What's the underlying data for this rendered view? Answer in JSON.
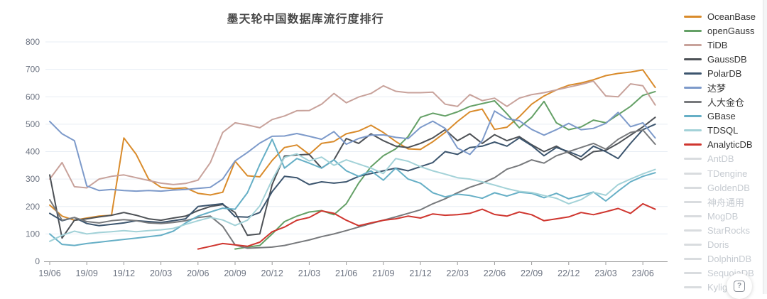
{
  "title": "墨天轮中国数据库流行度排行",
  "help_button": {
    "glyph": "?"
  },
  "chart_data": {
    "type": "line",
    "title": "墨天轮中国数据库流行度排行",
    "x": [
      "19/06",
      "19/07",
      "19/08",
      "19/09",
      "19/10",
      "19/11",
      "19/12",
      "20/01",
      "20/02",
      "20/03",
      "20/04",
      "20/05",
      "20/06",
      "20/07",
      "20/08",
      "20/09",
      "20/10",
      "20/11",
      "20/12",
      "21/01",
      "21/02",
      "21/03",
      "21/04",
      "21/05",
      "21/06",
      "21/07",
      "21/08",
      "21/09",
      "21/10",
      "21/11",
      "21/12",
      "22/01",
      "22/02",
      "22/03",
      "22/04",
      "22/05",
      "22/06",
      "22/07",
      "22/08",
      "22/09",
      "22/10",
      "22/11",
      "22/12",
      "23/01",
      "23/02",
      "23/03",
      "23/04",
      "23/05",
      "23/06",
      "23/07"
    ],
    "x_tick_labels": [
      "19/06",
      "19/09",
      "19/12",
      "20/03",
      "20/06",
      "20/09",
      "20/12",
      "21/03",
      "21/06",
      "21/09",
      "21/12",
      "22/03",
      "22/06",
      "22/09",
      "22/12",
      "23/03",
      "23/06"
    ],
    "tick_every": 3,
    "ylim": [
      0,
      800
    ],
    "y_ticks": [
      0,
      100,
      200,
      300,
      400,
      500,
      600,
      700,
      800
    ],
    "grid": true,
    "legend_position": "right",
    "colors": {
      "grid": "#e7edf4",
      "axis": "#999999",
      "tick_label": "#6b7280",
      "disabled_line": "#d9dcdf",
      "disabled_text": "#c6cbd1"
    },
    "series": [
      {
        "name": "OceanBase",
        "color": "#d98b2b",
        "enabled": true,
        "values": [
          205,
          165,
          150,
          158,
          165,
          168,
          450,
          390,
          300,
          270,
          265,
          268,
          248,
          242,
          252,
          365,
          312,
          308,
          368,
          415,
          424,
          390,
          430,
          437,
          465,
          475,
          496,
          470,
          437,
          410,
          408,
          436,
          470,
          510,
          545,
          555,
          481,
          489,
          527,
          573,
          603,
          625,
          642,
          650,
          662,
          677,
          685,
          690,
          698,
          634
        ]
      },
      {
        "name": "openGauss",
        "color": "#64a066",
        "enabled": true,
        "values": [
          null,
          null,
          null,
          null,
          null,
          null,
          null,
          null,
          null,
          null,
          null,
          null,
          null,
          null,
          null,
          45,
          52,
          58,
          100,
          145,
          165,
          180,
          185,
          170,
          210,
          285,
          345,
          385,
          410,
          455,
          525,
          540,
          530,
          545,
          565,
          575,
          585,
          538,
          487,
          525,
          583,
          505,
          480,
          490,
          515,
          505,
          535,
          565,
          605,
          619
        ]
      },
      {
        "name": "TiDB",
        "color": "#c8a29b",
        "enabled": true,
        "values": [
          300,
          360,
          272,
          268,
          300,
          310,
          315,
          305,
          295,
          285,
          280,
          284,
          296,
          360,
          470,
          505,
          497,
          487,
          517,
          530,
          549,
          550,
          573,
          612,
          578,
          599,
          612,
          640,
          620,
          615,
          615,
          617,
          573,
          565,
          608,
          586,
          595,
          565,
          595,
          608,
          615,
          625,
          635,
          645,
          657,
          603,
          600,
          647,
          640,
          570
        ]
      },
      {
        "name": "GaussDB",
        "color": "#4d5156",
        "enabled": true,
        "values": [
          315,
          85,
          150,
          155,
          162,
          168,
          178,
          168,
          155,
          150,
          158,
          165,
          185,
          200,
          207,
          178,
          95,
          100,
          280,
          384,
          388,
          390,
          340,
          370,
          448,
          430,
          465,
          440,
          420,
          415,
          430,
          450,
          480,
          440,
          465,
          430,
          462,
          440,
          455,
          425,
          400,
          420,
          395,
          370,
          400,
          405,
          430,
          460,
          490,
          525
        ]
      },
      {
        "name": "PolarDB",
        "color": "#3c556e",
        "enabled": true,
        "values": [
          175,
          148,
          160,
          138,
          130,
          135,
          140,
          148,
          145,
          142,
          148,
          155,
          200,
          205,
          210,
          163,
          161,
          178,
          254,
          310,
          305,
          280,
          290,
          285,
          290,
          310,
          320,
          330,
          340,
          330,
          345,
          360,
          400,
          390,
          415,
          420,
          435,
          420,
          450,
          422,
          385,
          415,
          400,
          382,
          420,
          400,
          375,
          430,
          480,
          500
        ]
      },
      {
        "name": "达梦",
        "color": "#7d9aca",
        "enabled": true,
        "values": [
          510,
          465,
          440,
          275,
          258,
          262,
          258,
          256,
          258,
          256,
          260,
          262,
          266,
          270,
          300,
          366,
          397,
          431,
          456,
          457,
          466,
          456,
          445,
          473,
          427,
          448,
          460,
          461,
          452,
          447,
          488,
          511,
          485,
          413,
          390,
          440,
          548,
          520,
          513,
          481,
          460,
          480,
          503,
          480,
          485,
          503,
          543,
          491,
          505,
          450
        ]
      },
      {
        "name": "人大金仓",
        "color": "#77797c",
        "enabled": true,
        "values": [
          225,
          150,
          160,
          145,
          140,
          148,
          152,
          148,
          140,
          138,
          142,
          148,
          160,
          165,
          128,
          60,
          48,
          50,
          52,
          58,
          68,
          78,
          90,
          100,
          112,
          125,
          138,
          150,
          162,
          175,
          188,
          210,
          228,
          250,
          270,
          285,
          305,
          336,
          350,
          370,
          358,
          385,
          400,
          415,
          430,
          409,
          445,
          470,
          479,
          427
        ]
      },
      {
        "name": "GBase",
        "color": "#66afc6",
        "enabled": true,
        "values": [
          100,
          62,
          58,
          65,
          70,
          75,
          80,
          85,
          90,
          95,
          110,
          140,
          165,
          180,
          194,
          190,
          250,
          353,
          445,
          340,
          375,
          358,
          340,
          370,
          330,
          310,
          330,
          296,
          340,
          300,
          285,
          250,
          235,
          245,
          240,
          230,
          250,
          238,
          252,
          248,
          232,
          248,
          228,
          240,
          253,
          220,
          256,
          290,
          310,
          323
        ]
      },
      {
        "name": "TDSQL",
        "color": "#a3d2d8",
        "enabled": true,
        "values": [
          73,
          95,
          110,
          100,
          105,
          108,
          112,
          108,
          112,
          115,
          120,
          135,
          148,
          160,
          151,
          131,
          150,
          202,
          297,
          379,
          392,
          366,
          380,
          350,
          370,
          355,
          340,
          320,
          375,
          365,
          345,
          330,
          318,
          305,
          300,
          290,
          278,
          265,
          255,
          251,
          240,
          230,
          210,
          225,
          252,
          241,
          280,
          300,
          319,
          335
        ]
      },
      {
        "name": "AnalyticDB",
        "color": "#cf362f",
        "enabled": true,
        "values": [
          null,
          null,
          null,
          null,
          null,
          null,
          null,
          null,
          null,
          null,
          null,
          null,
          45,
          55,
          65,
          60,
          55,
          70,
          108,
          125,
          150,
          160,
          184,
          175,
          150,
          130,
          140,
          150,
          155,
          165,
          158,
          173,
          168,
          170,
          175,
          190,
          171,
          165,
          180,
          170,
          148,
          155,
          162,
          178,
          170,
          181,
          193,
          175,
          210,
          190
        ]
      },
      {
        "name": "AntDB",
        "enabled": false,
        "values": []
      },
      {
        "name": "TDengine",
        "enabled": false,
        "values": []
      },
      {
        "name": "GoldenDB",
        "enabled": false,
        "values": []
      },
      {
        "name": "神舟通用",
        "enabled": false,
        "values": []
      },
      {
        "name": "MogDB",
        "enabled": false,
        "values": []
      },
      {
        "name": "StarRocks",
        "enabled": false,
        "values": []
      },
      {
        "name": "Doris",
        "enabled": false,
        "values": []
      },
      {
        "name": "DolphinDB",
        "enabled": false,
        "values": []
      },
      {
        "name": "SequoiaDB",
        "enabled": false,
        "values": []
      },
      {
        "name": "Kylig",
        "enabled": false,
        "values": []
      }
    ]
  }
}
